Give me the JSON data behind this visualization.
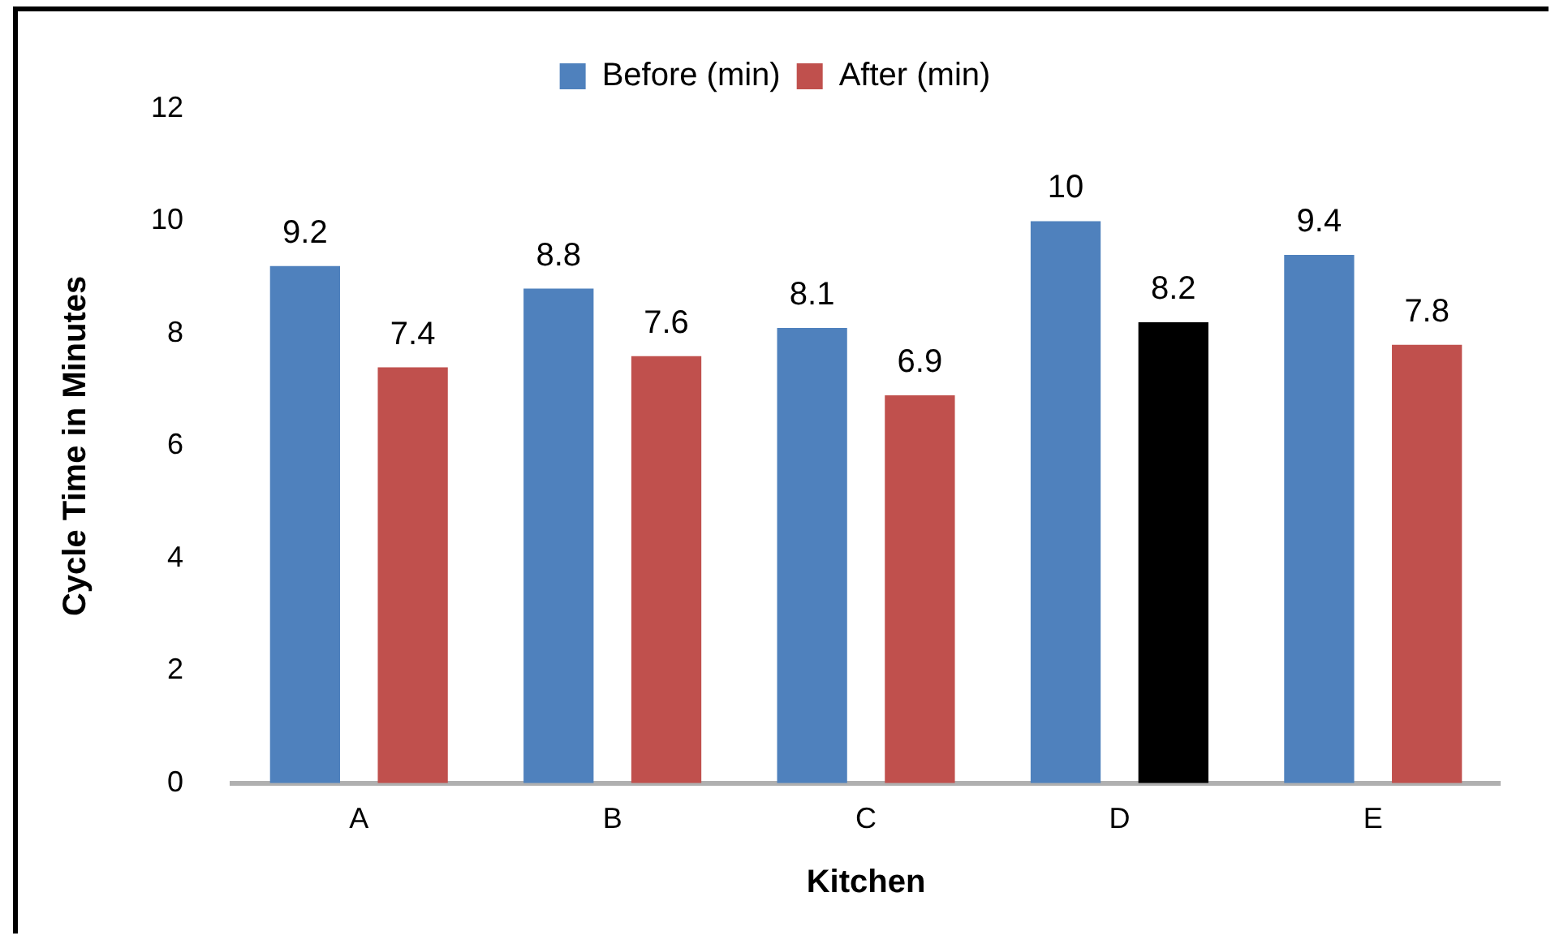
{
  "chart_data": {
    "type": "bar",
    "xlabel": "Kitchen",
    "ylabel": "Cycle Time in Minutes",
    "categories": [
      "A",
      "B",
      "C",
      "D",
      "E"
    ],
    "series": [
      {
        "name": "Before (min)",
        "color": "#4f81bd",
        "values": [
          9.2,
          8.8,
          8.1,
          10,
          9.4
        ]
      },
      {
        "name": "After (min)",
        "color": "#c0504d",
        "colors": [
          "#c0504d",
          "#c0504d",
          "#c0504d",
          "#000000",
          "#c0504d"
        ],
        "values": [
          7.4,
          7.6,
          6.9,
          8.2,
          7.8
        ]
      }
    ],
    "ylim": [
      0,
      12
    ],
    "yticks": [
      0,
      2,
      4,
      6,
      8,
      10,
      12
    ],
    "grid": false,
    "legend": "top",
    "data_labels": true
  }
}
